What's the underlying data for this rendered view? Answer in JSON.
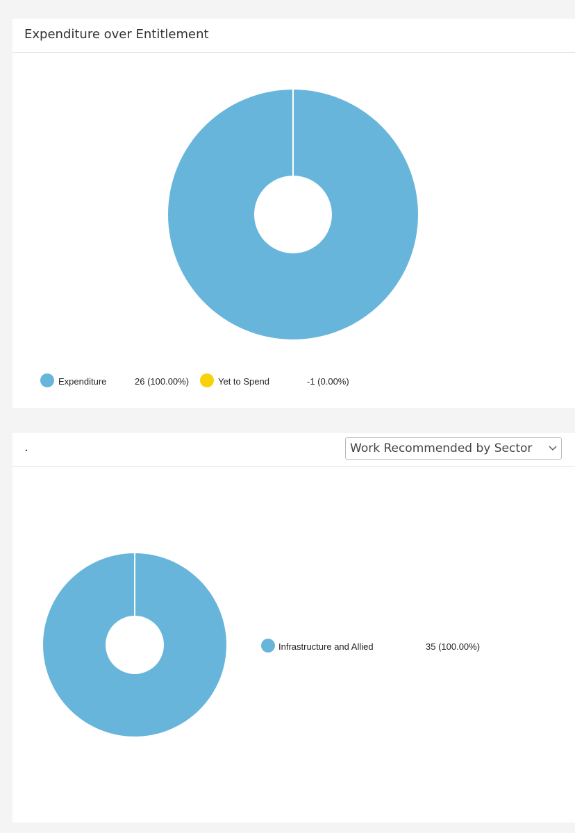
{
  "cards": [
    {
      "title": "Expenditure over Entitlement",
      "chart_data": {
        "type": "pie",
        "title": "Expenditure over Entitlement",
        "donut": true,
        "slices": [
          {
            "label": "Expenditure",
            "value": 26,
            "percent_text": "26 (100.00%)",
            "color": "#68b5db"
          },
          {
            "label": "Yet to Spend",
            "value": -1,
            "percent_text": "-1 (0.00%)",
            "color": "#f9d10a"
          }
        ],
        "legend_position": "bottom"
      }
    },
    {
      "title": ".",
      "select": {
        "value": "Work Recommended by Sector",
        "icon": "chevron-down-icon"
      },
      "chart_data": {
        "type": "pie",
        "title": "",
        "donut": true,
        "slices": [
          {
            "label": "Infrastructure and Allied",
            "value": 35,
            "percent_text": "35 (100.00%)",
            "color": "#68b5db"
          }
        ],
        "legend_position": "right"
      }
    }
  ]
}
